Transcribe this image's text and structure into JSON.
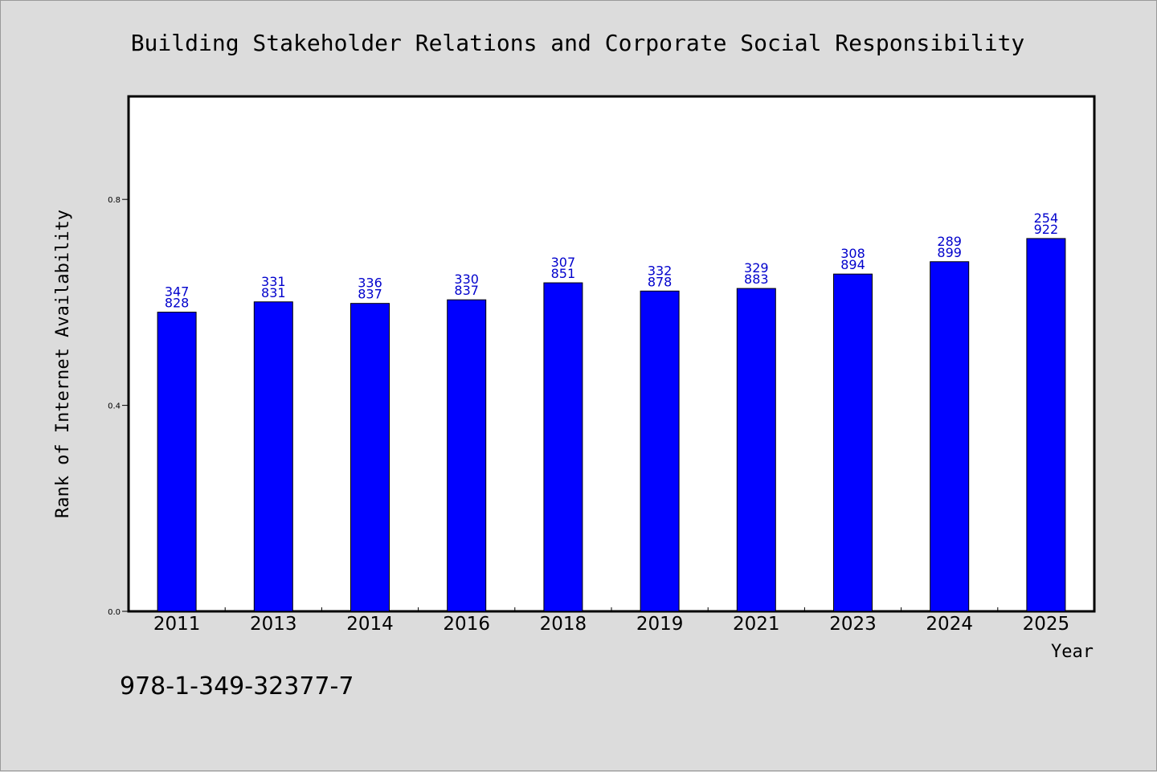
{
  "chart_data": {
    "type": "bar",
    "title": "Building Stakeholder Relations and Corporate Social Responsibility",
    "xlabel": "Year",
    "ylabel": "Rank of Internet Availability",
    "categories": [
      "2011",
      "2013",
      "2014",
      "2016",
      "2018",
      "2019",
      "2021",
      "2023",
      "2024",
      "2025"
    ],
    "values": [
      0.581,
      0.601,
      0.598,
      0.605,
      0.638,
      0.622,
      0.627,
      0.655,
      0.679,
      0.724
    ],
    "data_labels": [
      [
        "347",
        "828"
      ],
      [
        "331",
        "831"
      ],
      [
        "336",
        "837"
      ],
      [
        "330",
        "837"
      ],
      [
        "307",
        "851"
      ],
      [
        "332",
        "878"
      ],
      [
        "329",
        "883"
      ],
      [
        "308",
        "894"
      ],
      [
        "289",
        "899"
      ],
      [
        "254",
        "922"
      ]
    ],
    "yticks": [
      "0.0",
      "0.4",
      "0.8"
    ],
    "ytick_values": [
      0.0,
      0.4,
      0.8
    ],
    "ylim": [
      0,
      1.0
    ],
    "grid": false,
    "bar_color": "#0000ff",
    "label_color": "#0000cc"
  },
  "footer": {
    "isbn": "978-1-349-32377-7"
  }
}
